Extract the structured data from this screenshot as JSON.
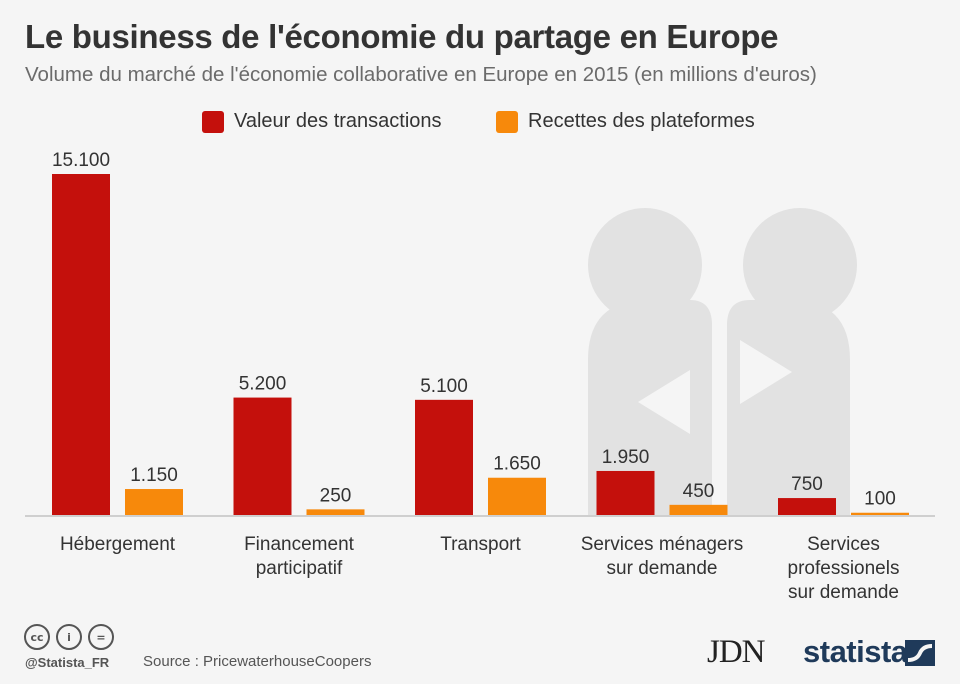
{
  "title": "Le business de l'économie du partage en Europe",
  "subtitle": "Volume du marché de l'économie collaborative en Europe en 2015 (en millions d'euros)",
  "colors": {
    "transactions": "#c4100c",
    "plateformes": "#f7890b",
    "axis": "#cfcfcf",
    "background": "#f5f5f5",
    "figures": "#e2e2e2"
  },
  "chart_data": {
    "type": "bar",
    "categories": [
      "Hébergement",
      "Financement participatif",
      "Transport",
      "Services ménagers sur demande",
      "Services professionels sur demande"
    ],
    "category_lines": [
      [
        "Hébergement"
      ],
      [
        "Financement",
        "participatif"
      ],
      [
        "Transport"
      ],
      [
        "Services ménagers",
        "sur demande"
      ],
      [
        "Services",
        "professionels",
        "sur demande"
      ]
    ],
    "series": [
      {
        "name": "Valeur des transactions",
        "values": [
          15100,
          5200,
          5100,
          1950,
          750
        ],
        "labels": [
          "15.100",
          "5.200",
          "5.100",
          "1.950",
          "750"
        ],
        "color": "#c4100c"
      },
      {
        "name": "Recettes des plateformes",
        "values": [
          1150,
          250,
          1650,
          450,
          100
        ],
        "labels": [
          "1.150",
          "250",
          "1.650",
          "450",
          "100"
        ],
        "color": "#f7890b"
      }
    ],
    "ylim": [
      0,
      15100
    ],
    "grid": false,
    "legend": "top-center"
  },
  "footer": {
    "icons": [
      "cc-icon",
      "person-icon",
      "equals-icon"
    ],
    "icon_glyphs": [
      "cc",
      "i",
      "="
    ],
    "handle": "@Statista_FR",
    "source": "Source : PricewaterhouseCoopers",
    "jdn": "JDN",
    "statista": "statista"
  }
}
